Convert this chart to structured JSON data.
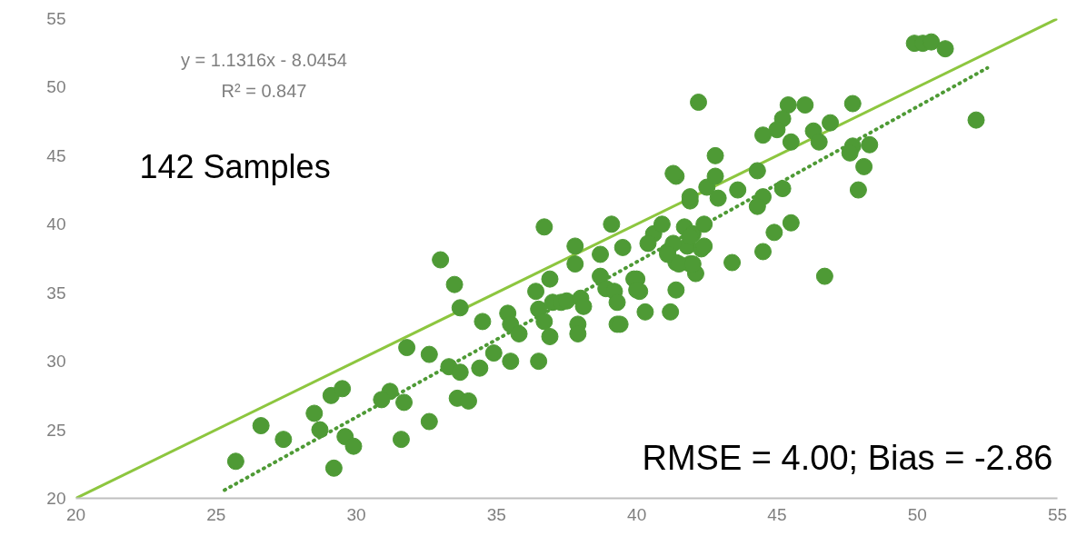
{
  "chart_data": {
    "type": "scatter",
    "xlim": [
      20,
      55
    ],
    "ylim": [
      20,
      55
    ],
    "xticks": [
      20,
      25,
      30,
      35,
      40,
      45,
      50,
      55
    ],
    "yticks": [
      20,
      25,
      30,
      35,
      40,
      45,
      50,
      55
    ],
    "grid": false,
    "annotations": [
      "y = 1.1316x - 8.0454",
      "R² = 0.847",
      "142 Samples",
      "RMSE = 4.00; Bias = -2.86"
    ],
    "series": [
      {
        "type": "line",
        "color": "#8dc63f",
        "line_style": "solid",
        "marker": "none",
        "x": [
          20,
          55
        ],
        "values": [
          20,
          55
        ]
      },
      {
        "type": "line",
        "color": "#4e9a35",
        "line_style": "dotted",
        "marker": "none",
        "x": [
          25.3,
          52.5
        ],
        "values": [
          20.6,
          51.4
        ]
      },
      {
        "color": "#4e9a35",
        "marker": "circle",
        "x": [
          25.7,
          26.6,
          27.4,
          28.5,
          28.7,
          29.1,
          29.5,
          29.2,
          29.6,
          29.9,
          31.2,
          30.9,
          31.7,
          32.6,
          31.6,
          33.6,
          34.0,
          31.8,
          32.6,
          33.0,
          33.5,
          33.7,
          34.5,
          35.4,
          35.5,
          35.8,
          33.3,
          33.7,
          34.4,
          34.9,
          35.5,
          36.5,
          36.7,
          37.8,
          37.8,
          38.7,
          39.1,
          39.5,
          36.4,
          36.9,
          36.5,
          36.7,
          37.0,
          37.3,
          36.9,
          37.5,
          38.0,
          38.1,
          37.9,
          37.9,
          38.7,
          38.9,
          39.2,
          39.3,
          39.3,
          40.0,
          40.1,
          40.3,
          40.6,
          40.9,
          40.4,
          41.1,
          41.4,
          41.4,
          41.2,
          41.7,
          42.0,
          42.4,
          41.8,
          42.3,
          41.9,
          42.1,
          41.9,
          42.2,
          45.4,
          46.0,
          47.7,
          45.2,
          45.0,
          44.5,
          45.5,
          46.3,
          46.9,
          46.5,
          52.1,
          47.7,
          48.3,
          47.6,
          48.1,
          47.9,
          42.8,
          44.3,
          41.4,
          41.3,
          41.9,
          42.5,
          42.8,
          42.9,
          43.6,
          44.5,
          44.3,
          45.2,
          45.5,
          44.9,
          44.5,
          43.4,
          46.7,
          41.3,
          41.9,
          42.4,
          41.1,
          41.5,
          42.0,
          39.9,
          40.0,
          39.4,
          49.9,
          50.2,
          50.5,
          51.0
        ],
        "values": [
          22.7,
          25.3,
          24.3,
          26.2,
          25.0,
          27.5,
          28.0,
          22.2,
          24.5,
          23.8,
          27.8,
          27.2,
          27.0,
          25.6,
          24.3,
          27.3,
          27.1,
          31.0,
          30.5,
          37.4,
          35.6,
          33.9,
          32.9,
          33.5,
          32.7,
          32.0,
          29.6,
          29.2,
          29.5,
          30.6,
          30.0,
          30.0,
          39.8,
          38.4,
          37.1,
          37.8,
          40.0,
          38.3,
          35.1,
          36.0,
          33.8,
          32.9,
          34.3,
          34.3,
          31.8,
          34.4,
          34.6,
          34.0,
          32.7,
          32.0,
          36.2,
          35.3,
          35.1,
          34.3,
          32.7,
          36.0,
          35.1,
          33.6,
          39.3,
          40.0,
          38.6,
          38.0,
          37.2,
          35.2,
          33.6,
          39.8,
          39.3,
          40.0,
          38.4,
          38.2,
          37.1,
          36.4,
          41.7,
          48.9,
          48.7,
          48.7,
          48.8,
          47.7,
          46.9,
          46.5,
          46.0,
          46.8,
          47.4,
          46.0,
          47.6,
          45.7,
          45.8,
          45.2,
          44.2,
          42.5,
          45.0,
          43.9,
          43.5,
          43.7,
          42.0,
          42.7,
          43.5,
          41.9,
          42.5,
          42.0,
          41.3,
          42.6,
          40.1,
          39.4,
          38.0,
          37.2,
          36.2,
          38.6,
          39.1,
          38.4,
          37.8,
          37.1,
          37.1,
          36.0,
          35.2,
          32.7,
          53.2,
          53.2,
          53.3,
          52.8
        ]
      }
    ]
  }
}
